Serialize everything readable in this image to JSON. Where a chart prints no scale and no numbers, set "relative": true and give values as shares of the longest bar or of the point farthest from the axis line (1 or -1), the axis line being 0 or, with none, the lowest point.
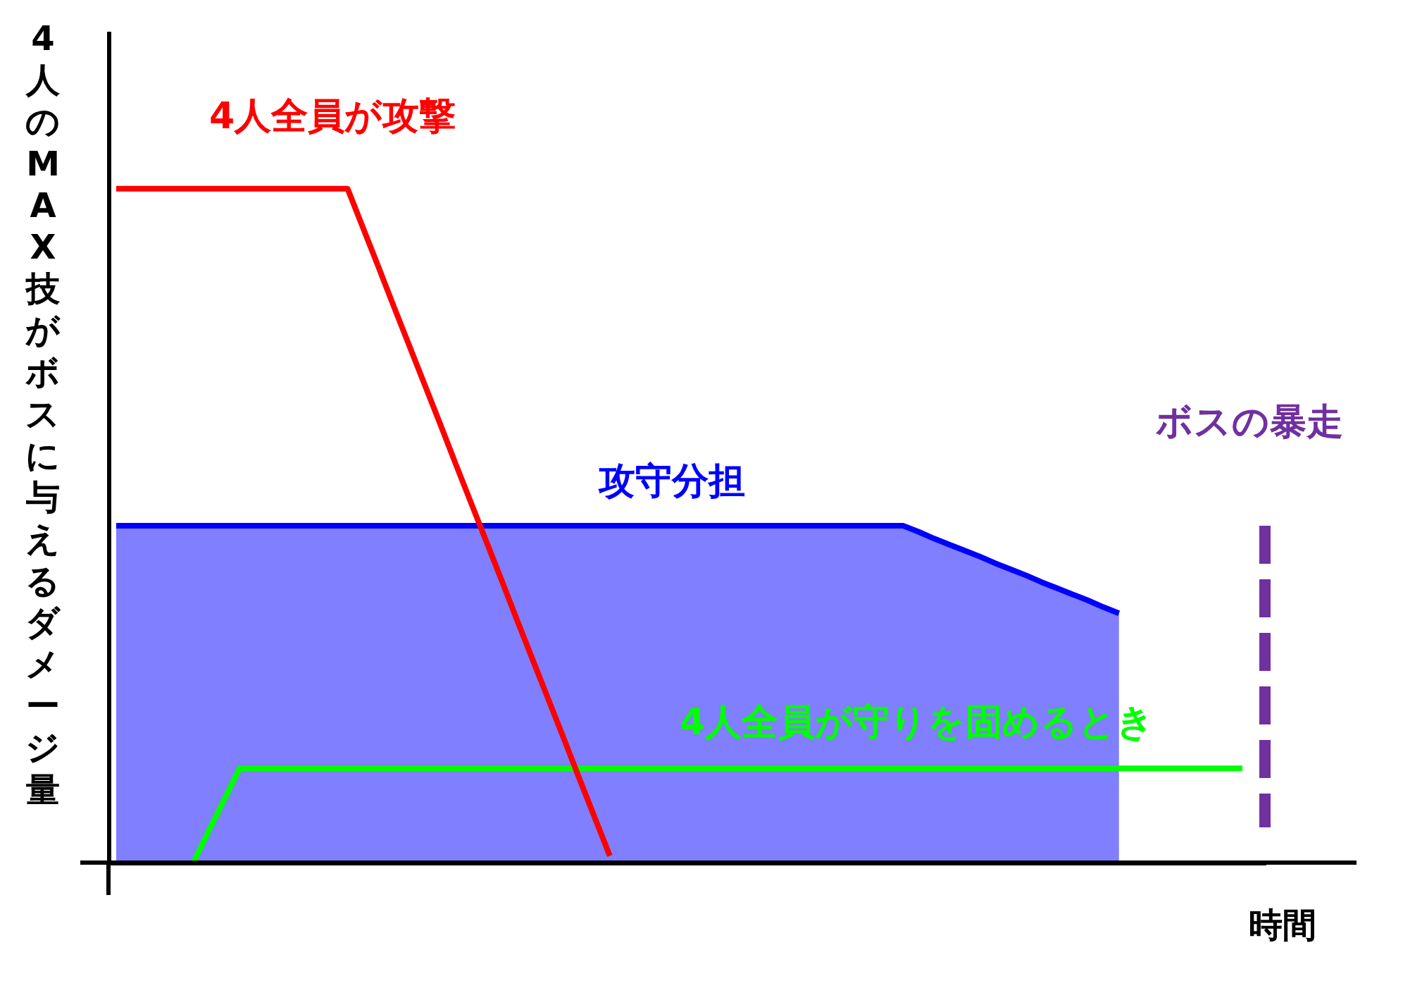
{
  "chart_data": {
    "type": "line",
    "relative": true,
    "xlabel": "時間",
    "ylabel": "4人のMAX技がボスに与えるダメージ量",
    "categories": [
      null,
      null,
      null,
      null,
      null,
      null,
      null,
      null,
      null,
      null,
      null,
      null,
      null,
      null,
      null,
      null,
      null,
      null,
      null,
      null,
      null,
      null,
      null,
      null,
      null,
      null,
      null,
      null,
      null,
      null,
      null,
      null,
      null,
      null,
      null,
      null,
      null,
      null,
      null,
      null,
      null,
      null,
      null,
      null,
      null,
      null,
      null,
      null,
      null,
      null,
      null,
      null,
      null,
      null,
      null,
      null,
      null,
      null,
      null,
      null,
      null,
      null,
      null,
      null,
      null,
      null,
      null,
      null,
      null,
      null,
      null,
      null,
      null,
      null,
      null
    ],
    "series": [
      {
        "name": "4人全員が攻撃",
        "color": "#ff0000",
        "values": [
          1,
          1,
          1,
          1,
          1,
          1,
          1,
          1,
          1,
          1,
          1,
          1,
          1,
          1,
          1,
          1,
          0.942,
          0.884,
          0.825,
          0.767,
          0.709,
          0.651,
          0.592,
          0.534,
          0.476,
          0.418,
          0.359,
          0.301,
          0.243,
          0.185,
          0.126,
          0.068,
          0.01,
          null,
          null,
          null,
          null,
          null,
          null,
          null,
          null,
          null,
          null,
          null,
          null,
          null,
          null,
          null,
          null,
          null,
          null,
          null,
          null,
          null,
          null,
          null,
          null,
          null,
          null,
          null,
          null,
          null,
          null,
          null,
          null,
          null,
          null,
          null,
          null,
          null,
          null,
          null,
          null,
          null,
          null
        ]
      },
      {
        "name": "攻守分担",
        "type": "area",
        "color": "#0000ff",
        "values": [
          0.5,
          0.5,
          0.5,
          0.5,
          0.5,
          0.5,
          0.5,
          0.5,
          0.5,
          0.5,
          0.5,
          0.5,
          0.5,
          0.5,
          0.5,
          0.5,
          0.5,
          0.5,
          0.5,
          0.5,
          0.5,
          0.5,
          0.5,
          0.5,
          0.5,
          0.5,
          0.5,
          0.5,
          0.5,
          0.5,
          0.5,
          0.5,
          0.5,
          0.5,
          0.5,
          0.5,
          0.5,
          0.5,
          0.5,
          0.5,
          0.5,
          0.5,
          0.5,
          0.5,
          0.5,
          0.5,
          0.5,
          0.5,
          0.5,
          0.5,
          0.5,
          0.5,
          0.491,
          0.481,
          0.472,
          0.463,
          0.454,
          0.444,
          0.435,
          0.426,
          0.416,
          0.407,
          0.398,
          0.389,
          0.379,
          0.37,
          null,
          null,
          null,
          null,
          null,
          null,
          null,
          null,
          null
        ]
      },
      {
        "name": "4人全員が守りを固めるとき",
        "color": "#00ff00",
        "values": [
          null,
          null,
          null,
          null,
          null,
          0,
          0.047,
          0.093,
          0.14,
          0.14,
          0.14,
          0.14,
          0.14,
          0.14,
          0.14,
          0.14,
          0.14,
          0.14,
          0.14,
          0.14,
          0.14,
          0.14,
          0.14,
          0.14,
          0.14,
          0.14,
          0.14,
          0.14,
          0.14,
          0.14,
          0.14,
          0.14,
          0.14,
          0.14,
          0.14,
          0.14,
          0.14,
          0.14,
          0.14,
          0.14,
          0.14,
          0.14,
          0.14,
          0.14,
          0.14,
          0.14,
          0.14,
          0.14,
          0.14,
          0.14,
          0.14,
          0.14,
          0.14,
          0.14,
          0.14,
          0.14,
          0.14,
          0.14,
          0.14,
          0.14,
          0.14,
          0.14,
          0.14,
          0.14,
          0.14,
          0.14,
          0.14,
          0.14,
          0.14,
          0.14,
          0.14,
          0.14,
          0.14,
          0.14,
          null
        ]
      }
    ],
    "annotations": [
      "ボスの暴走"
    ]
  }
}
